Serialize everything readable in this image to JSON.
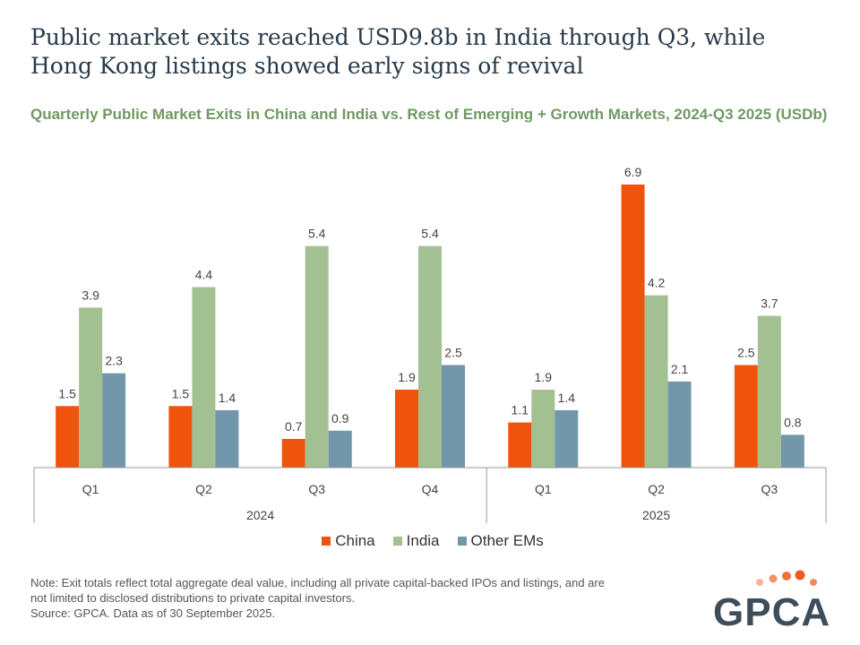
{
  "title": "Public market exits reached USD9.8b in India through Q3, while Hong Kong listings showed early signs of revival",
  "brand": {
    "name": "GPCA"
  },
  "note": {
    "line1": "Note: Exit totals reflect total aggregate deal value, including all private capital-backed IPOs and listings, and are not limited to disclosed distributions to private capital investors.",
    "line2": "Source: GPCA. Data as of 30 September 2025."
  },
  "colors": {
    "china": "#f0530c",
    "india": "#a3c093",
    "other": "#7397aa",
    "axis": "#9a9a9a",
    "label": "#444444",
    "logo_text": "#3f4d5a",
    "logo_dot": "#f05a24"
  },
  "chart_data": {
    "type": "bar",
    "title": "Quarterly Public Market Exits in China and India vs. Rest of Emerging + Growth Markets, 2024-Q3 2025 (USDb)",
    "categories": [
      "Q1",
      "Q2",
      "Q3",
      "Q4",
      "Q1",
      "Q2",
      "Q3"
    ],
    "groups": [
      {
        "label": "2024",
        "count": 4
      },
      {
        "label": "2025",
        "count": 3
      }
    ],
    "series": [
      {
        "name": "China",
        "key": "china",
        "values": [
          1.5,
          1.5,
          0.7,
          1.9,
          1.1,
          6.9,
          2.5
        ]
      },
      {
        "name": "India",
        "key": "india",
        "values": [
          3.9,
          4.4,
          5.4,
          5.4,
          1.9,
          4.2,
          3.7
        ]
      },
      {
        "name": "Other EMs",
        "key": "other",
        "values": [
          2.3,
          1.4,
          0.9,
          2.5,
          1.4,
          2.1,
          0.8
        ]
      }
    ],
    "xlabel": "",
    "ylabel": "",
    "ylim": [
      0,
      7.5
    ],
    "legend_position": "bottom",
    "grid": false
  }
}
